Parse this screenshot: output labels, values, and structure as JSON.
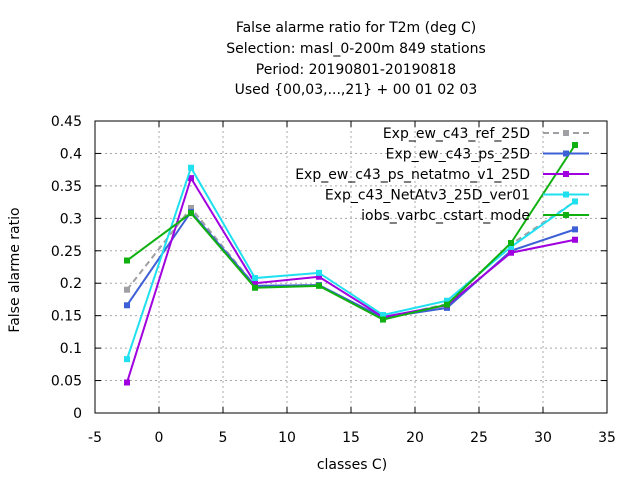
{
  "chart_data": {
    "type": "line",
    "title_lines": [
      "False alarme ratio  for T2m (deg C)",
      "Selection: masl_0-200m    849 stations",
      "Period: 20190801-20190818",
      "Used {00,03,...,21} + 00 01 02 03"
    ],
    "xlabel": "classes C)",
    "ylabel": "False alarme ratio",
    "xlim": [
      -5,
      35
    ],
    "ylim": [
      0,
      0.45
    ],
    "xticks": [
      "-5",
      "0",
      "5",
      "10",
      "15",
      "20",
      "25",
      "30",
      "35"
    ],
    "yticks": [
      "0",
      "0.05",
      "0.1",
      "0.15",
      "0.2",
      "0.25",
      "0.3",
      "0.35",
      "0.4",
      "0.45"
    ],
    "grid": true,
    "legend_position": "top-right",
    "x": [
      -2.5,
      2.5,
      7.5,
      12.5,
      17.5,
      22.5,
      27.5,
      32.5
    ],
    "series": [
      {
        "name": "Exp_ew_c43_ref_25D",
        "color": "#a0a0a4",
        "dashed": true,
        "values": [
          0.19,
          0.316,
          0.196,
          0.197,
          0.146,
          0.168,
          0.26,
          0.326
        ]
      },
      {
        "name": "Exp_ew_c43_ps_25D",
        "color": "#3e60d6",
        "dashed": false,
        "values": [
          0.166,
          0.31,
          0.196,
          0.197,
          0.147,
          0.162,
          0.25,
          0.283
        ]
      },
      {
        "name": "Exp_ew_c43_ps_netatmo_v1_25D",
        "color": "#a000e0",
        "dashed": false,
        "values": [
          0.047,
          0.362,
          0.2,
          0.21,
          0.148,
          0.166,
          0.247,
          0.267
        ]
      },
      {
        "name": "Exp_c43_NetAtv3_25D_ver01",
        "color": "#20e0f0",
        "dashed": false,
        "values": [
          0.083,
          0.378,
          0.208,
          0.216,
          0.151,
          0.173,
          0.256,
          0.326
        ]
      },
      {
        "name": "iobs_varbc_cstart_mode",
        "color": "#10b010",
        "dashed": false,
        "values": [
          0.235,
          0.308,
          0.193,
          0.196,
          0.144,
          0.167,
          0.262,
          0.413
        ]
      }
    ]
  }
}
